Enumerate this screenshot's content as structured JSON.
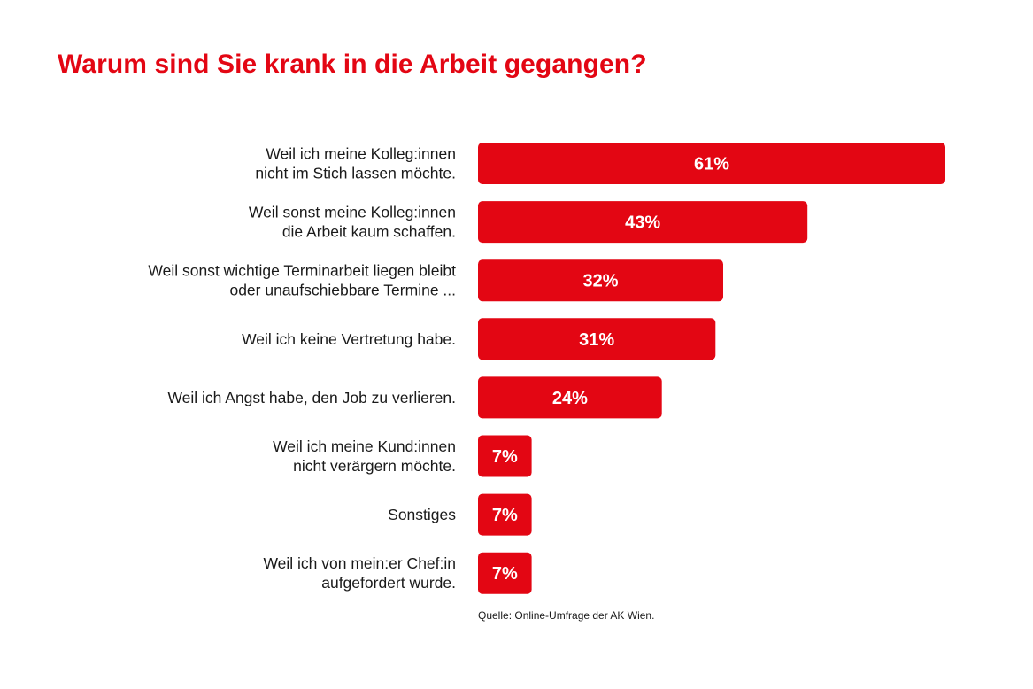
{
  "chart_data": {
    "type": "bar",
    "orientation": "horizontal",
    "title": "Warum sind Sie krank in die Arbeit gegangen?",
    "categories": [
      [
        "Weil ich meine Kolleg:innen",
        "nicht im Stich lassen möchte."
      ],
      [
        "Weil sonst meine Kolleg:innen",
        "die Arbeit kaum schaffen."
      ],
      [
        "Weil sonst wichtige Terminarbeit liegen bleibt",
        "oder unaufschiebbare Termine ..."
      ],
      [
        "Weil ich keine Vertretung habe."
      ],
      [
        "Weil ich Angst habe, den Job zu verlieren."
      ],
      [
        "Weil ich meine Kund:innen",
        "nicht verärgern möchte."
      ],
      [
        "Sonstiges"
      ],
      [
        "Weil ich von mein:er Chef:in",
        "aufgefordert wurde."
      ]
    ],
    "values": [
      61,
      43,
      32,
      31,
      24,
      7,
      7,
      7
    ],
    "value_labels": [
      "61%",
      "43%",
      "32%",
      "31%",
      "24%",
      "7%",
      "7%",
      "7%"
    ],
    "unit": "%",
    "xlim": [
      0,
      61
    ],
    "grid": false,
    "legend": "none",
    "source": "Quelle: Online-Umfrage der AK Wien."
  },
  "colors": {
    "accent": "#e30613",
    "text": "#1a1a1a",
    "bar_label": "#ffffff"
  }
}
